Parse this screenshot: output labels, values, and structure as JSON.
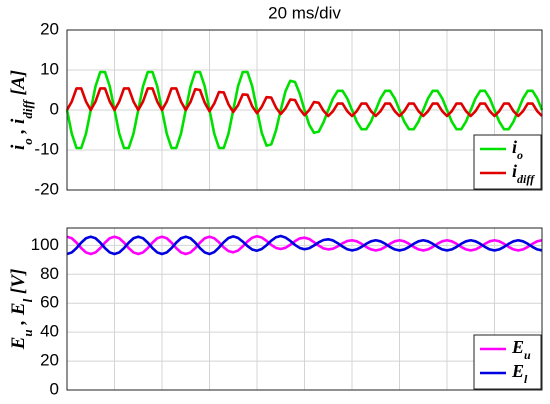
{
  "chart_data": [
    {
      "type": "line",
      "title": "20 ms/div",
      "ylabel": [
        {
          "text": "i"
        },
        {
          "sub": "o"
        },
        {
          "text": " , i"
        },
        {
          "sub": "diff"
        },
        {
          "text": " [A]"
        }
      ],
      "x": [
        0,
        2,
        4,
        6,
        8,
        10,
        12,
        14,
        16,
        18,
        20,
        22,
        24,
        26,
        28,
        30,
        32,
        34,
        36,
        38,
        40,
        42,
        44,
        46,
        48,
        50,
        52,
        54,
        56,
        58,
        60,
        62,
        64,
        66,
        68,
        70,
        72,
        74,
        76,
        78,
        80,
        82,
        84,
        86,
        88,
        90,
        92,
        94,
        96,
        98,
        100,
        102,
        104,
        106,
        108,
        110,
        112,
        114,
        116,
        118,
        120,
        122,
        124,
        126,
        128,
        130,
        132,
        134,
        136,
        138,
        140,
        142,
        144,
        146,
        148,
        150,
        152,
        154,
        156,
        158,
        160,
        162,
        164,
        166,
        168,
        170,
        172,
        174,
        176,
        178,
        180,
        182,
        184,
        186,
        188,
        190,
        192,
        194,
        196,
        198,
        200
      ],
      "xlim": [
        0,
        200
      ],
      "ylim": [
        -20,
        20
      ],
      "yticks": [
        -20,
        -10,
        0,
        10,
        20
      ],
      "grid": true,
      "legend": "lower right",
      "series": [
        {
          "name": "i",
          "name_sub": "o",
          "color": "#00e000",
          "values": [
            0,
            -5.9,
            -9.5,
            -9.5,
            -5.9,
            0,
            5.9,
            9.5,
            9.5,
            5.9,
            0,
            -5.9,
            -9.5,
            -9.5,
            -5.9,
            0,
            5.9,
            9.5,
            9.5,
            5.9,
            0,
            -5.9,
            -9.5,
            -9.5,
            -5.9,
            0,
            5.9,
            9.5,
            9.5,
            5.9,
            0,
            -5.9,
            -9.5,
            -9.5,
            -5.9,
            0,
            5.9,
            9.5,
            9.5,
            5.9,
            0,
            -5.7,
            -8.9,
            -8.6,
            -5.1,
            0,
            4.7,
            7.3,
            7.0,
            4.1,
            0,
            -3.7,
            -5.7,
            -5.4,
            -3.1,
            0,
            2.9,
            4.8,
            4.8,
            2.9,
            0,
            -2.9,
            -4.8,
            -4.8,
            -2.9,
            0,
            2.9,
            4.8,
            4.8,
            2.9,
            0,
            -2.9,
            -4.8,
            -4.8,
            -2.9,
            0,
            2.9,
            4.8,
            4.8,
            2.9,
            0,
            -2.9,
            -4.8,
            -4.8,
            -2.9,
            0,
            2.9,
            4.8,
            4.8,
            2.9,
            0,
            -2.9,
            -4.8,
            -4.8,
            -2.9,
            0,
            2.9,
            4.8,
            4.8,
            2.9,
            0
          ]
        },
        {
          "name": "i",
          "name_sub": "diff",
          "color": "#e00000",
          "values": [
            0,
            2.1,
            5.4,
            5.4,
            2.1,
            0,
            2.1,
            5.4,
            5.4,
            2.1,
            0,
            2.1,
            5.4,
            5.4,
            2.1,
            0,
            2.1,
            5.4,
            5.4,
            2.1,
            0,
            2.1,
            5.4,
            5.4,
            2.1,
            0,
            2.0,
            5.2,
            5.0,
            1.8,
            -0.3,
            1.6,
            4.5,
            4.4,
            1.4,
            -0.5,
            1.2,
            3.9,
            3.8,
            0.9,
            -0.8,
            0.8,
            3.2,
            3.1,
            0.6,
            -1.0,
            0.4,
            2.6,
            2.5,
            0.2,
            -1.3,
            0,
            2.0,
            1.8,
            -0.2,
            -1.5,
            -0.3,
            1.6,
            1.6,
            -0.3,
            -1.5,
            -0.3,
            1.6,
            1.6,
            -0.3,
            -1.5,
            -0.3,
            1.6,
            1.6,
            -0.3,
            -1.5,
            -0.3,
            1.6,
            1.6,
            -0.3,
            -1.5,
            -0.3,
            1.6,
            1.6,
            -0.3,
            -1.5,
            -0.3,
            1.6,
            1.6,
            -0.3,
            -1.5,
            -0.3,
            1.6,
            1.6,
            -0.3,
            -1.5,
            -0.3,
            1.6,
            1.6,
            -0.3,
            -1.5,
            -0.3,
            1.6,
            1.6,
            -0.3,
            -1.5
          ]
        }
      ]
    },
    {
      "type": "line",
      "ylabel": [
        {
          "text": "E"
        },
        {
          "sub": "u"
        },
        {
          "text": " , E"
        },
        {
          "sub": "l"
        },
        {
          "text": " [V]"
        }
      ],
      "x": [
        0,
        2,
        4,
        6,
        8,
        10,
        12,
        14,
        16,
        18,
        20,
        22,
        24,
        26,
        28,
        30,
        32,
        34,
        36,
        38,
        40,
        42,
        44,
        46,
        48,
        50,
        52,
        54,
        56,
        58,
        60,
        62,
        64,
        66,
        68,
        70,
        72,
        74,
        76,
        78,
        80,
        82,
        84,
        86,
        88,
        90,
        92,
        94,
        96,
        98,
        100,
        102,
        104,
        106,
        108,
        110,
        112,
        114,
        116,
        118,
        120,
        122,
        124,
        126,
        128,
        130,
        132,
        134,
        136,
        138,
        140,
        142,
        144,
        146,
        148,
        150,
        152,
        154,
        156,
        158,
        160,
        162,
        164,
        166,
        168,
        170,
        172,
        174,
        176,
        178,
        180,
        182,
        184,
        186,
        188,
        190,
        192,
        194,
        196,
        198,
        200
      ],
      "xlim": [
        0,
        200
      ],
      "ylim": [
        0,
        112
      ],
      "yticks": [
        0,
        20,
        40,
        60,
        80,
        100
      ],
      "grid": true,
      "legend": "lower right",
      "series": [
        {
          "name": "E",
          "name_sub": "u",
          "color": "#ff00ff",
          "values": [
            106,
            104.9,
            101.9,
            98.1,
            95.1,
            94,
            95.1,
            98.1,
            101.9,
            104.9,
            106,
            104.9,
            101.9,
            98.1,
            95.1,
            94,
            95.1,
            98.1,
            101.9,
            104.9,
            106,
            104.9,
            101.9,
            98.1,
            95.1,
            94,
            95.1,
            98.1,
            101.9,
            104.9,
            106,
            104.9,
            102.1,
            98.6,
            96.0,
            95.2,
            96.4,
            99.3,
            102.7,
            105.3,
            106.3,
            105.4,
            103.1,
            100.3,
            98.2,
            97.5,
            98.3,
            100.4,
            102.9,
            104.8,
            105.3,
            104.4,
            102.2,
            99.8,
            97.9,
            97.2,
            97.7,
            99.3,
            101.4,
            103.0,
            103.5,
            102.8,
            101.1,
            98.9,
            97.2,
            96.5,
            97.2,
            98.9,
            101.1,
            102.8,
            103.5,
            102.8,
            101.1,
            98.9,
            97.2,
            96.5,
            97.2,
            98.9,
            101.1,
            102.8,
            103.5,
            102.8,
            101.1,
            98.9,
            97.2,
            96.5,
            97.2,
            98.9,
            101.1,
            102.8,
            103.5,
            102.8,
            101.1,
            98.9,
            97.2,
            96.5,
            97.2,
            98.9,
            101.1,
            102.8,
            103.5
          ]
        },
        {
          "name": "E",
          "name_sub": "l",
          "color": "#0000e0",
          "values": [
            94,
            95.1,
            98.1,
            101.9,
            104.9,
            106,
            104.9,
            101.9,
            98.1,
            95.1,
            94,
            95.1,
            98.1,
            101.9,
            104.9,
            106,
            104.9,
            101.9,
            98.1,
            95.1,
            94,
            95.1,
            98.1,
            101.9,
            104.9,
            106,
            104.9,
            101.9,
            98.1,
            95.1,
            94,
            95.4,
            98.5,
            102.2,
            105.1,
            106.2,
            105.2,
            102.6,
            99.5,
            97.1,
            96.3,
            97.5,
            100.1,
            103.2,
            105.6,
            106.5,
            105.4,
            103.1,
            100.3,
            98.2,
            97.3,
            98.0,
            99.9,
            102.1,
            103.7,
            104.2,
            103.4,
            101.5,
            99.2,
            97.3,
            96.5,
            97.2,
            98.9,
            101.1,
            102.8,
            103.5,
            102.8,
            101.1,
            98.9,
            97.2,
            96.5,
            97.2,
            98.9,
            101.1,
            102.8,
            103.5,
            102.8,
            101.1,
            98.9,
            97.2,
            96.5,
            97.2,
            98.9,
            101.1,
            102.8,
            103.5,
            102.8,
            101.1,
            98.9,
            97.2,
            96.5,
            97.2,
            98.9,
            101.1,
            102.8,
            103.5,
            102.8,
            101.1,
            98.9,
            97.2,
            96.5
          ]
        }
      ]
    }
  ]
}
